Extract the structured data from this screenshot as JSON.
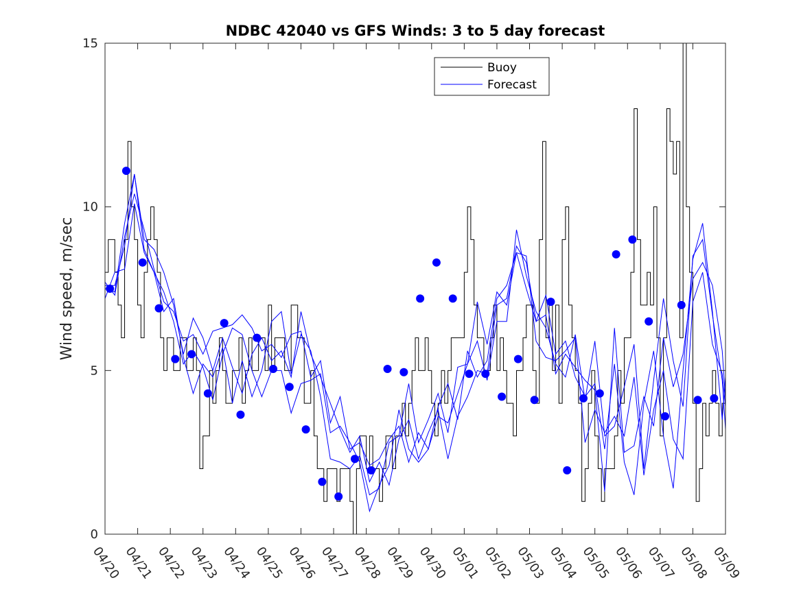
{
  "chart_data": {
    "type": "line",
    "title": "NDBC 42040 vs GFS Winds: 3 to 5 day forecast",
    "xlabel": "",
    "ylabel": "Wind speed, m/sec",
    "ylim": [
      0,
      15
    ],
    "xlim": [
      "04/20",
      "05/09"
    ],
    "x_ticks": [
      "04/20",
      "04/21",
      "04/22",
      "04/23",
      "04/24",
      "04/25",
      "04/26",
      "04/27",
      "04/28",
      "04/29",
      "04/30",
      "05/01",
      "05/02",
      "05/03",
      "05/04",
      "05/05",
      "05/06",
      "05/07",
      "05/08",
      "05/09"
    ],
    "y_ticks": [
      "0",
      "5",
      "10",
      "15"
    ],
    "legend_position": "top-center",
    "colors": {
      "buoy": "#000000",
      "forecast": "#0000ff",
      "markers": "#0000ff"
    },
    "series": [
      {
        "name": "Buoy",
        "style": "step",
        "x_days": [
          0,
          0.1,
          0.2,
          0.3,
          0.4,
          0.5,
          0.6,
          0.7,
          0.8,
          0.9,
          1.0,
          1.1,
          1.2,
          1.3,
          1.4,
          1.5,
          1.6,
          1.7,
          1.8,
          1.9,
          2.0,
          2.1,
          2.2,
          2.3,
          2.4,
          2.5,
          2.6,
          2.7,
          2.8,
          2.9,
          3.0,
          3.1,
          3.2,
          3.3,
          3.4,
          3.5,
          3.6,
          3.7,
          3.8,
          3.9,
          4.0,
          4.1,
          4.2,
          4.3,
          4.4,
          4.5,
          4.6,
          4.7,
          4.8,
          4.9,
          5.0,
          5.1,
          5.2,
          5.3,
          5.4,
          5.5,
          5.6,
          5.7,
          5.8,
          5.9,
          6.0,
          6.1,
          6.2,
          6.3,
          6.4,
          6.5,
          6.6,
          6.7,
          6.8,
          6.9,
          7.0,
          7.1,
          7.2,
          7.3,
          7.4,
          7.5,
          7.6,
          7.7,
          7.8,
          7.9,
          8.0,
          8.1,
          8.2,
          8.3,
          8.4,
          8.5,
          8.6,
          8.7,
          8.8,
          8.9,
          9.0,
          9.1,
          9.2,
          9.3,
          9.4,
          9.5,
          9.6,
          9.7,
          9.8,
          9.9,
          10.0,
          10.1,
          10.2,
          10.3,
          10.4,
          10.5,
          10.6,
          10.7,
          10.8,
          10.9,
          11.0,
          11.1,
          11.2,
          11.3,
          11.4,
          11.5,
          11.6,
          11.7,
          11.8,
          11.9,
          12.0,
          12.1,
          12.2,
          12.3,
          12.4,
          12.5,
          12.6,
          12.7,
          12.8,
          12.9,
          13.0,
          13.1,
          13.2,
          13.3,
          13.4,
          13.5,
          13.6,
          13.7,
          13.8,
          13.9,
          14.0,
          14.1,
          14.2,
          14.3,
          14.4,
          14.5,
          14.6,
          14.7,
          14.8,
          14.9,
          15.0,
          15.1,
          15.2,
          15.3,
          15.4,
          15.5,
          15.6,
          15.7,
          15.8,
          15.9,
          16.0,
          16.1,
          16.2,
          16.3,
          16.4,
          16.5,
          16.6,
          16.7,
          16.8,
          16.9,
          17.0,
          17.1,
          17.2,
          17.3,
          17.4,
          17.5,
          17.6,
          17.7,
          17.8,
          17.9,
          18.0,
          18.1,
          18.2,
          18.3,
          18.4,
          18.5,
          18.6,
          18.7,
          18.8,
          18.9,
          19.0
        ],
        "values": [
          8,
          9,
          9,
          8,
          7,
          6,
          9,
          12,
          10,
          9,
          7,
          6,
          8,
          9,
          10,
          9,
          8,
          6,
          5,
          6,
          6,
          5,
          5,
          6,
          6,
          5,
          5,
          6,
          5,
          2,
          3,
          3,
          5,
          4,
          5,
          6,
          5,
          4,
          4,
          5,
          5,
          6,
          4,
          5,
          6,
          5,
          5,
          6,
          6,
          5,
          7,
          5,
          6,
          6,
          6,
          5,
          5,
          7,
          7,
          6,
          6,
          4,
          4,
          5,
          3,
          2,
          2,
          1,
          2,
          2,
          2,
          1,
          2,
          2,
          2,
          1,
          0,
          2,
          3,
          3,
          2,
          3,
          2,
          2,
          1,
          2,
          3,
          3,
          2,
          3,
          3,
          4,
          3,
          4,
          5,
          6,
          5,
          5,
          6,
          5,
          4,
          3,
          4,
          5,
          4,
          5,
          6,
          6,
          6,
          6,
          8,
          10,
          9,
          7,
          6,
          6,
          5,
          5,
          6,
          7,
          5,
          6,
          5,
          4,
          4,
          3,
          5,
          5,
          6,
          7,
          7,
          5,
          4,
          9,
          12,
          6,
          7,
          5,
          7,
          4,
          9,
          10,
          7,
          6,
          5,
          4,
          1,
          2,
          4,
          5,
          3,
          2,
          1,
          2,
          2,
          2,
          3,
          5,
          4,
          6,
          6,
          8,
          13,
          9,
          7,
          7,
          8,
          7,
          10,
          6,
          3,
          6,
          13,
          12,
          11,
          12,
          6,
          15,
          10,
          8,
          4,
          1,
          2,
          4,
          3,
          4,
          5,
          4,
          3,
          4,
          5
        ]
      },
      {
        "name": "Forecast",
        "style": "ensemble",
        "members": [
          {
            "x_days": [
              0,
              0.3,
              0.6,
              0.9,
              1.2,
              1.5,
              1.8,
              2.1,
              2.4,
              2.7,
              3.0,
              3.3,
              3.6,
              3.9,
              4.2,
              4.5,
              4.8,
              5.1,
              5.4,
              5.7,
              6.0,
              6.3,
              6.6,
              6.9,
              7.2,
              7.5,
              7.8,
              8.1,
              8.4,
              8.7,
              9.0,
              9.3,
              9.6,
              9.9,
              10.2,
              10.5,
              10.8,
              11.1,
              11.4,
              11.7,
              12.0,
              12.3,
              12.6,
              12.9,
              13.2,
              13.5,
              13.8,
              14.1,
              14.4,
              14.7,
              15.0,
              15.3,
              15.6,
              15.9,
              16.2,
              16.5,
              16.8,
              17.1,
              17.4,
              17.7,
              18.0,
              18.3,
              18.6,
              18.9,
              19.0
            ],
            "values": [
              7.5,
              7.4,
              9.5,
              11,
              9,
              8.7,
              8,
              7,
              5.5,
              6.6,
              6,
              5,
              6,
              5.1,
              4.3,
              5.5,
              6,
              5.3,
              5.6,
              4.8,
              6.8,
              5.5,
              4.8,
              4,
              3.2,
              2.5,
              3,
              1.6,
              2.2,
              1.5,
              2.9,
              3.5,
              2.3,
              3.1,
              3.8,
              2.3,
              3.6,
              4.2,
              5,
              4.9,
              7,
              7.2,
              8.8,
              8.3,
              6.5,
              7.3,
              5.5,
              5.9,
              4.8,
              4.2,
              4.6,
              2.6,
              5.2,
              2.2,
              1.2,
              4,
              5.6,
              3,
              1.4,
              5,
              8.4,
              9.5,
              6.8,
              3.5,
              4.8
            ]
          },
          {
            "x_days": [
              0,
              0.3,
              0.6,
              0.9,
              1.2,
              1.5,
              1.8,
              2.1,
              2.4,
              2.7,
              3.0,
              3.3,
              3.6,
              3.9,
              4.2,
              4.5,
              4.8,
              5.1,
              5.4,
              5.7,
              6.0,
              6.3,
              6.6,
              6.9,
              7.2,
              7.5,
              7.8,
              8.1,
              8.4,
              8.7,
              9.0,
              9.3,
              9.6,
              9.9,
              10.2,
              10.5,
              10.8,
              11.1,
              11.4,
              11.7,
              12.0,
              12.3,
              12.6,
              12.9,
              13.2,
              13.5,
              13.8,
              14.1,
              14.4,
              14.7,
              15.0,
              15.3,
              15.6,
              15.9,
              16.2,
              16.5,
              16.8,
              17.1,
              17.4,
              17.7,
              18.0,
              18.3,
              18.6,
              18.9,
              19.0
            ],
            "values": [
              7.6,
              7.6,
              8.8,
              11,
              8.7,
              8,
              7.4,
              6.5,
              5.2,
              5.6,
              5.1,
              4.1,
              5.5,
              6.3,
              6.1,
              5,
              4.2,
              5,
              5,
              3.7,
              4.6,
              4.7,
              4.9,
              3.1,
              3.3,
              2.8,
              2.2,
              0.7,
              1.5,
              2.1,
              3.8,
              2.6,
              2.2,
              2.6,
              3.6,
              3.4,
              4.3,
              5.2,
              5.9,
              4.7,
              6.5,
              6.5,
              9.3,
              7.9,
              6.8,
              6.3,
              5.2,
              4.8,
              6.1,
              4.1,
              5.9,
              3,
              3.3,
              4.5,
              5.8,
              2,
              4.7,
              7.2,
              5.3,
              3.9,
              8.5,
              9,
              6.7,
              4.7,
              3.2
            ]
          },
          {
            "x_days": [
              0,
              0.3,
              0.6,
              0.9,
              1.2,
              1.5,
              1.8,
              2.1,
              2.4,
              2.7,
              3.0,
              3.3,
              3.6,
              3.9,
              4.2,
              4.5,
              4.8,
              5.1,
              5.4,
              5.7,
              6.0,
              6.3,
              6.6,
              6.9,
              7.2,
              7.5,
              7.8,
              8.1,
              8.4,
              8.7,
              9.0,
              9.3,
              9.6,
              9.9,
              10.2,
              10.5,
              10.8,
              11.1,
              11.4,
              11.7,
              12.0,
              12.3,
              12.6,
              12.9,
              13.2,
              13.5,
              13.8,
              14.1,
              14.4,
              14.7,
              15.0,
              15.3,
              15.6,
              15.9,
              16.2,
              16.5,
              16.8,
              17.1,
              17.4,
              17.7,
              18.0,
              18.3,
              18.6,
              18.9,
              19.0
            ],
            "values": [
              7.7,
              7.3,
              9.1,
              10.4,
              9.3,
              8.1,
              7.1,
              6.8,
              5.9,
              6.1,
              5.5,
              6.2,
              6.3,
              6.4,
              6.7,
              6.3,
              5.6,
              5.8,
              5.4,
              6.1,
              6.2,
              4.8,
              5.3,
              3.4,
              4.2,
              2.6,
              2.8,
              2.1,
              2.3,
              2.9,
              3.3,
              2.2,
              3.1,
              2.6,
              3.9,
              4.6,
              3.5,
              5.6,
              4.8,
              5.3,
              7.2,
              7.6,
              8.6,
              8.5,
              5.9,
              5.4,
              5.3,
              5.6,
              6,
              2.8,
              3.8,
              3.1,
              3.6,
              3,
              4.8,
              1.8,
              3.8,
              5,
              2.9,
              2.3,
              7.1,
              8,
              5.8,
              4.9,
              3.9
            ]
          },
          {
            "x_days": [
              0,
              0.3,
              0.6,
              0.9,
              1.2,
              1.5,
              1.8,
              2.1,
              2.4,
              2.7,
              3.0,
              3.3,
              3.6,
              3.9,
              4.2,
              4.5,
              4.8,
              5.1,
              5.4,
              5.7,
              6.0,
              6.3,
              6.6,
              6.9,
              7.2,
              7.5,
              7.8,
              8.1,
              8.4,
              8.7,
              9.0,
              9.3,
              9.6,
              9.9,
              10.2,
              10.5,
              10.8,
              11.1,
              11.4,
              11.7,
              12.0,
              12.3,
              12.6,
              12.9,
              13.2,
              13.5,
              13.8,
              14.1,
              14.4,
              14.7,
              15.0,
              15.3,
              15.6,
              15.9,
              16.2,
              16.5,
              16.8,
              17.1,
              17.4,
              17.7,
              18.0,
              18.3,
              18.6,
              18.9,
              19.0
            ],
            "values": [
              7.2,
              8,
              8.1,
              10.1,
              8.6,
              8,
              6.8,
              7.2,
              5.4,
              4.3,
              5.2,
              4.8,
              5.7,
              4,
              5.3,
              4.2,
              5,
              6.5,
              6.8,
              4.9,
              6.1,
              5.6,
              4.2,
              2.3,
              2.2,
              2,
              2.4,
              1.2,
              1.4,
              2.8,
              3,
              4.6,
              2.8,
              3.5,
              4.3,
              3.1,
              5.1,
              5.2,
              7.1,
              5.8,
              7.4,
              7,
              8.6,
              7.5,
              6.5,
              6.7,
              4.9,
              5.5,
              5.1,
              4.7,
              4.4,
              1.3,
              6.3,
              2.5,
              2.7,
              4.2,
              3.3,
              6,
              4.5,
              5.5,
              7.8,
              8.3,
              7.6,
              5.6,
              4.1
            ]
          }
        ]
      }
    ],
    "markers": {
      "x_days": [
        0.15,
        0.65,
        1.15,
        1.65,
        2.15,
        2.65,
        3.15,
        3.65,
        4.15,
        4.65,
        5.15,
        5.65,
        6.15,
        6.65,
        7.15,
        7.65,
        8.15,
        8.65,
        9.15,
        9.65,
        10.15,
        10.65,
        11.15,
        11.65,
        12.15,
        12.65,
        13.15,
        13.65,
        14.15,
        14.65,
        15.15,
        15.65,
        16.15,
        16.65,
        17.15,
        17.65,
        18.15,
        18.65
      ],
      "values": [
        7.5,
        11.1,
        8.3,
        6.9,
        5.35,
        5.5,
        4.3,
        6.45,
        3.65,
        6,
        5.05,
        4.5,
        3.2,
        1.6,
        1.15,
        2.3,
        1.95,
        5.05,
        4.95,
        7.2,
        8.3,
        7.2,
        4.9,
        4.9,
        4.2,
        5.35,
        4.1,
        7.1,
        1.95,
        4.15,
        4.3,
        8.55,
        9,
        6.5,
        3.6,
        7,
        4.1,
        4.15
      ]
    }
  },
  "legend": {
    "items": [
      "Buoy",
      "Forecast"
    ]
  }
}
